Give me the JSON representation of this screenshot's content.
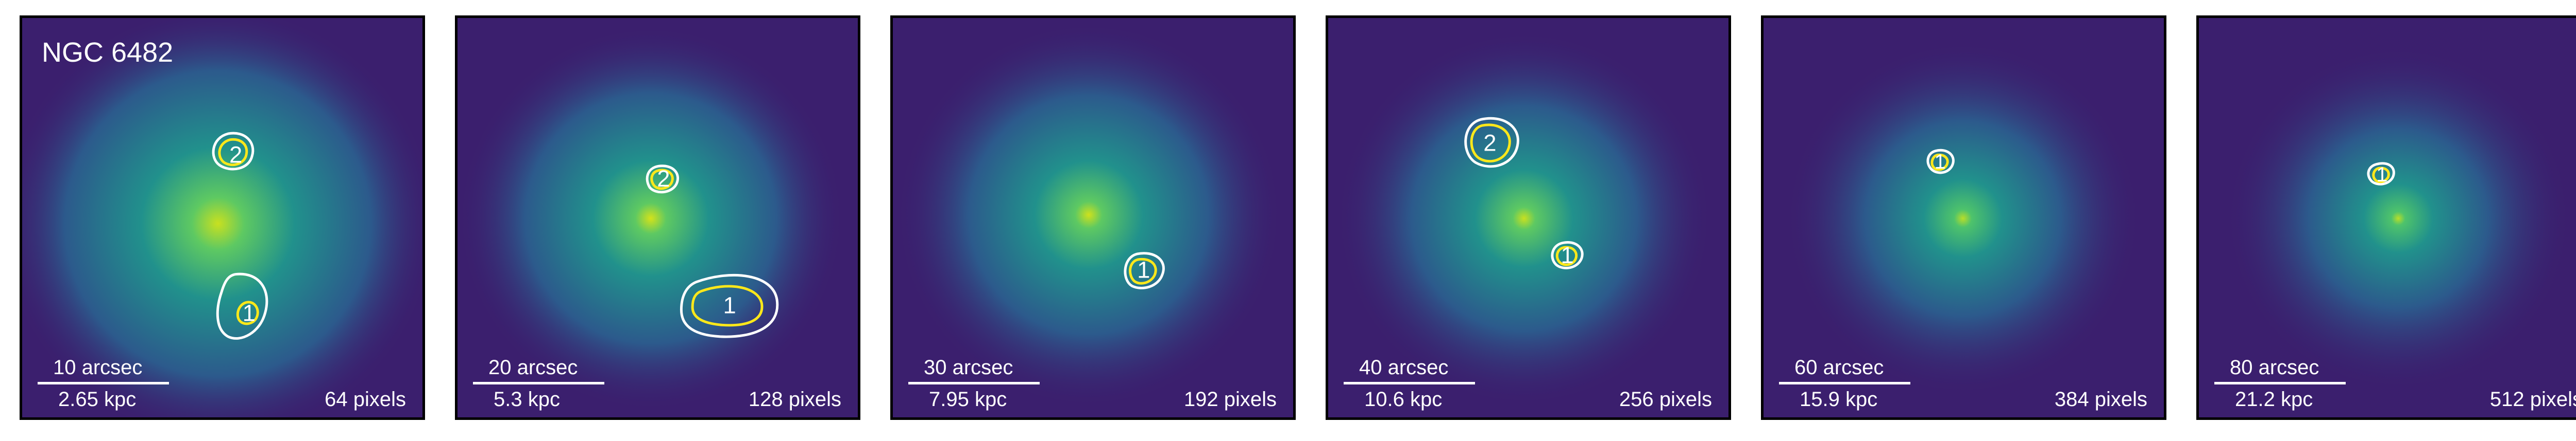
{
  "colors": {
    "background": "#3b1f6e",
    "halo": "#24828e",
    "core": "#c8e020",
    "contour_outer": "#ffffff",
    "contour_inner": "#ffe81a",
    "text": "#ffffff"
  },
  "panels": [
    {
      "galaxy": "NGC 6482",
      "arcsec": "10 arcsec",
      "kpc": "2.65 kpc",
      "pixels": "64 pixels",
      "sources": [
        {
          "label": "2"
        },
        {
          "label": "1"
        }
      ]
    },
    {
      "galaxy": "",
      "arcsec": "20 arcsec",
      "kpc": "5.3 kpc",
      "pixels": "128 pixels",
      "sources": [
        {
          "label": "2"
        },
        {
          "label": "1"
        }
      ]
    },
    {
      "galaxy": "",
      "arcsec": "30 arcsec",
      "kpc": "7.95 kpc",
      "pixels": "192 pixels",
      "sources": [
        {
          "label": "1"
        }
      ]
    },
    {
      "galaxy": "",
      "arcsec": "40 arcsec",
      "kpc": "10.6 kpc",
      "pixels": "256 pixels",
      "sources": [
        {
          "label": "2"
        },
        {
          "label": "1"
        }
      ]
    },
    {
      "galaxy": "",
      "arcsec": "60 arcsec",
      "kpc": "15.9 kpc",
      "pixels": "384 pixels",
      "sources": [
        {
          "label": "1"
        }
      ]
    },
    {
      "galaxy": "",
      "arcsec": "80 arcsec",
      "kpc": "21.2 kpc",
      "pixels": "512 pixels",
      "sources": [
        {
          "label": "1"
        }
      ]
    }
  ]
}
